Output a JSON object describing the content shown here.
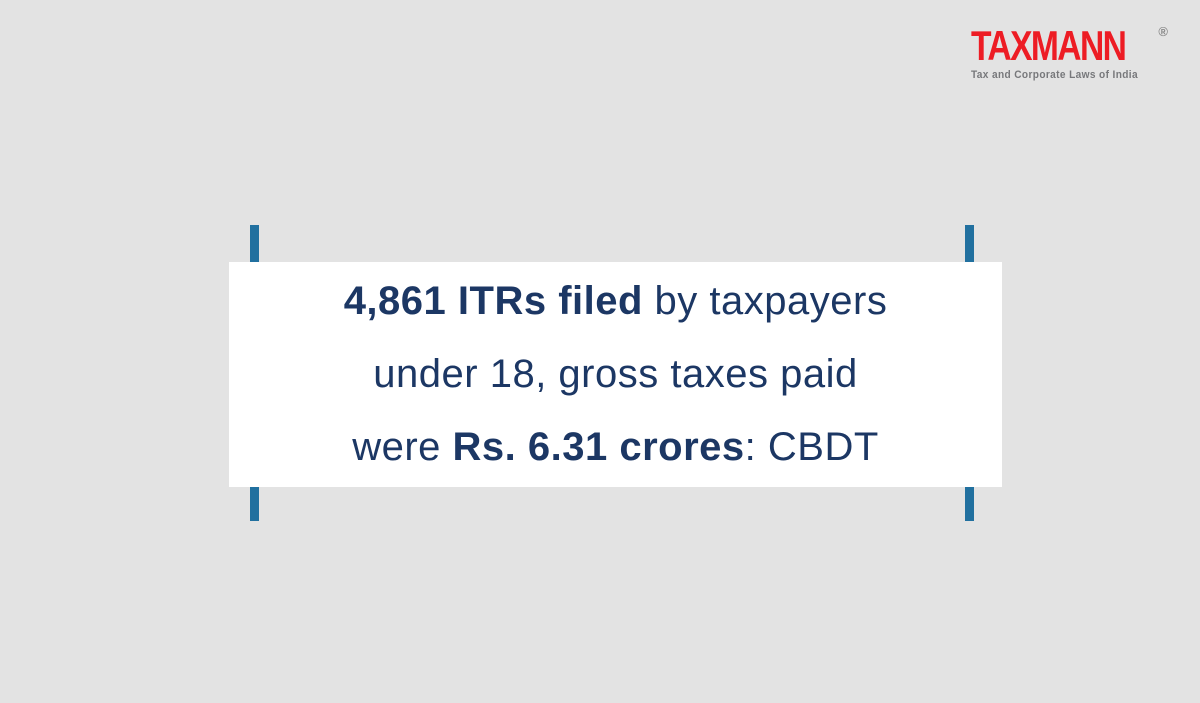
{
  "page": {
    "background_color": "#e3e3e3"
  },
  "logo": {
    "wordmark": "TAXMANN",
    "registered_mark": "®",
    "tagline": "Tax and Corporate Laws of India",
    "brand_red": "#ed1c24",
    "tagline_gray": "#77787b"
  },
  "headline": {
    "text_color": "#1c3764",
    "card_background": "#ffffff",
    "accent_bar_color": "#21709f",
    "line1": {
      "bold": "4,861 ITRs filed",
      "rest": " by taxpayers"
    },
    "line2": {
      "text": "under 18, gross taxes paid"
    },
    "line3": {
      "pre": "were ",
      "bold": "Rs. 6.31 crores",
      "post": ": CBDT"
    }
  }
}
